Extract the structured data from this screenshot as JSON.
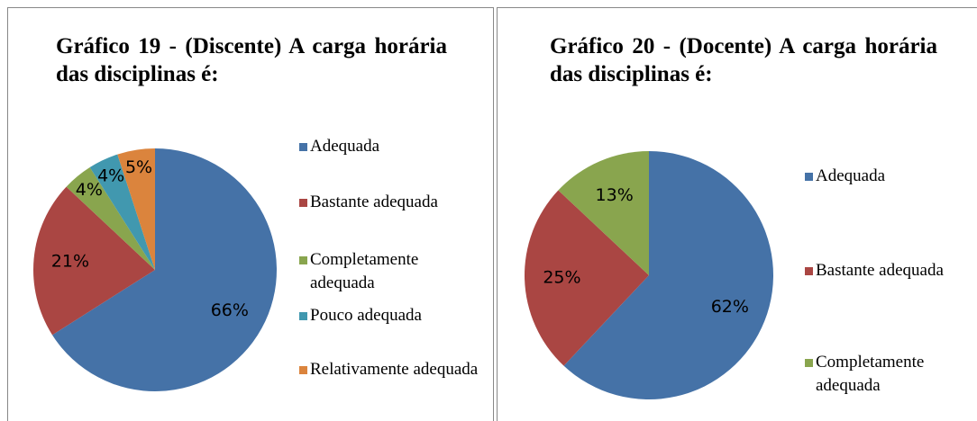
{
  "chart_data": [
    {
      "type": "pie",
      "title": "Gráfico 19 - (Discente) A carga horária das disciplinas é:",
      "categories": [
        "Adequada",
        "Bastante adequada",
        "Completamente adequada",
        "Pouco adequada",
        "Relativamente adequada"
      ],
      "values": [
        66,
        21,
        4,
        4,
        5
      ],
      "value_labels": [
        "66%",
        "21%",
        "4%",
        "4%",
        "5%"
      ],
      "colors": [
        "#4572a7",
        "#aa4643",
        "#89a54e",
        "#4198af",
        "#db843d"
      ],
      "legend": "right"
    },
    {
      "type": "pie",
      "title": "Gráfico 20 - (Docente) A carga horária das disciplinas é:",
      "categories": [
        "Adequada",
        "Bastante adequada",
        "Completamente adequada"
      ],
      "values": [
        62,
        25,
        13
      ],
      "value_labels": [
        "62%",
        "25%",
        "13%"
      ],
      "colors": [
        "#4572a7",
        "#aa4643",
        "#89a54e"
      ],
      "legend": "right"
    }
  ]
}
